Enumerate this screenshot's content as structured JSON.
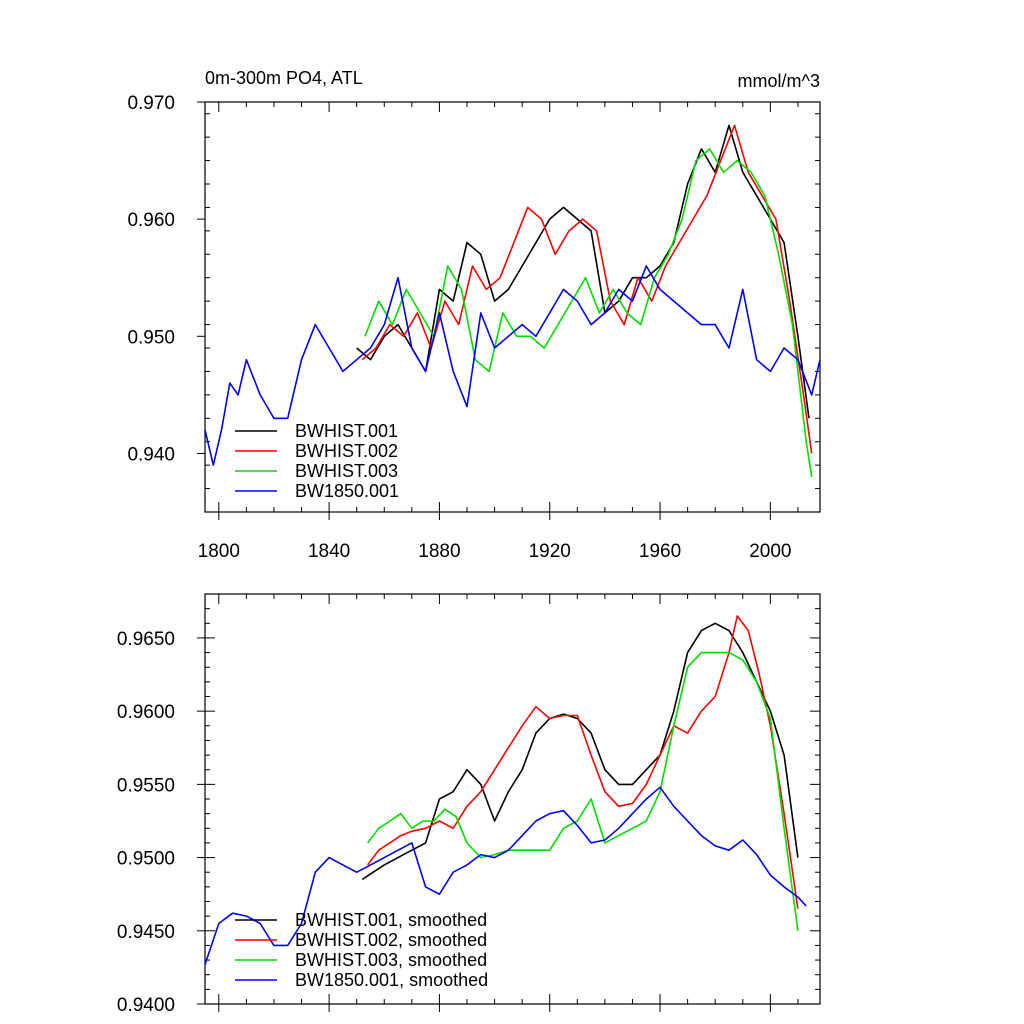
{
  "chart_data": [
    {
      "type": "line",
      "title_left": "0m-300m PO4, ATL",
      "title_right": "mmol/m^3",
      "xlim": [
        1795,
        2018
      ],
      "ylim": [
        0.935,
        0.97
      ],
      "xticks": [
        1800,
        1840,
        1880,
        1920,
        1960,
        2000
      ],
      "xtick_labels": [
        "1800",
        "1840",
        "1880",
        "1920",
        "1960",
        "2000"
      ],
      "yticks": [
        0.94,
        0.95,
        0.96,
        0.97
      ],
      "ytick_labels": [
        "0.940",
        "0.950",
        "0.960",
        "0.970"
      ],
      "legend": "bottom-left",
      "series": [
        {
          "name": "BWHIST.001",
          "color": "#000000",
          "x": [
            1850,
            1855,
            1860,
            1865,
            1870,
            1875,
            1880,
            1885,
            1890,
            1895,
            1900,
            1905,
            1910,
            1915,
            1920,
            1925,
            1930,
            1935,
            1940,
            1945,
            1950,
            1955,
            1960,
            1965,
            1970,
            1975,
            1980,
            1985,
            1990,
            1995,
            2000,
            2005,
            2010,
            2014
          ],
          "y": [
            0.949,
            0.948,
            0.95,
            0.951,
            0.949,
            0.947,
            0.954,
            0.953,
            0.958,
            0.957,
            0.953,
            0.954,
            0.956,
            0.958,
            0.96,
            0.961,
            0.96,
            0.959,
            0.952,
            0.953,
            0.955,
            0.955,
            0.956,
            0.958,
            0.963,
            0.966,
            0.964,
            0.968,
            0.964,
            0.962,
            0.96,
            0.958,
            0.95,
            0.943
          ]
        },
        {
          "name": "BWHIST.002",
          "color": "#ff0000",
          "x": [
            1852,
            1857,
            1862,
            1867,
            1872,
            1877,
            1882,
            1887,
            1892,
            1897,
            1902,
            1907,
            1912,
            1917,
            1922,
            1927,
            1932,
            1937,
            1942,
            1947,
            1952,
            1957,
            1962,
            1967,
            1972,
            1977,
            1982,
            1987,
            1992,
            1997,
            2002,
            2007,
            2012,
            2015
          ],
          "y": [
            0.948,
            0.949,
            0.951,
            0.95,
            0.952,
            0.949,
            0.953,
            0.951,
            0.956,
            0.954,
            0.955,
            0.958,
            0.961,
            0.96,
            0.957,
            0.959,
            0.96,
            0.959,
            0.953,
            0.951,
            0.955,
            0.953,
            0.956,
            0.958,
            0.96,
            0.962,
            0.965,
            0.968,
            0.964,
            0.962,
            0.96,
            0.953,
            0.945,
            0.94
          ]
        },
        {
          "name": "BWHIST.003",
          "color": "#00dd00",
          "x": [
            1853,
            1858,
            1863,
            1868,
            1873,
            1878,
            1883,
            1888,
            1893,
            1898,
            1903,
            1908,
            1913,
            1918,
            1923,
            1928,
            1933,
            1938,
            1943,
            1948,
            1953,
            1958,
            1963,
            1968,
            1973,
            1978,
            1983,
            1988,
            1993,
            1998,
            2003,
            2008,
            2013,
            2015
          ],
          "y": [
            0.95,
            0.953,
            0.951,
            0.954,
            0.952,
            0.95,
            0.956,
            0.954,
            0.948,
            0.947,
            0.952,
            0.95,
            0.95,
            0.949,
            0.951,
            0.953,
            0.955,
            0.952,
            0.954,
            0.952,
            0.951,
            0.955,
            0.957,
            0.96,
            0.965,
            0.966,
            0.964,
            0.965,
            0.964,
            0.962,
            0.957,
            0.951,
            0.941,
            0.938
          ]
        },
        {
          "name": "BW1850.001",
          "color": "#0000ff",
          "x": [
            1795,
            1798,
            1801,
            1804,
            1807,
            1810,
            1815,
            1820,
            1825,
            1830,
            1835,
            1840,
            1845,
            1850,
            1855,
            1860,
            1865,
            1870,
            1875,
            1880,
            1885,
            1890,
            1895,
            1900,
            1905,
            1910,
            1915,
            1920,
            1925,
            1930,
            1935,
            1940,
            1945,
            1950,
            1955,
            1960,
            1965,
            1970,
            1975,
            1980,
            1985,
            1990,
            1995,
            2000,
            2005,
            2010,
            2015,
            2018
          ],
          "y": [
            0.942,
            0.939,
            0.942,
            0.946,
            0.945,
            0.948,
            0.945,
            0.943,
            0.943,
            0.948,
            0.951,
            0.949,
            0.947,
            0.948,
            0.949,
            0.951,
            0.955,
            0.949,
            0.947,
            0.952,
            0.947,
            0.944,
            0.952,
            0.949,
            0.95,
            0.951,
            0.95,
            0.952,
            0.954,
            0.953,
            0.951,
            0.952,
            0.954,
            0.953,
            0.956,
            0.954,
            0.953,
            0.952,
            0.951,
            0.951,
            0.949,
            0.954,
            0.948,
            0.947,
            0.949,
            0.948,
            0.945,
            0.948
          ]
        }
      ]
    },
    {
      "type": "line",
      "xlim": [
        1795,
        2018
      ],
      "ylim": [
        0.94,
        0.968
      ],
      "xticks": [
        1800,
        1840,
        1880,
        1920,
        1960,
        2000
      ],
      "yticks": [
        0.94,
        0.945,
        0.95,
        0.955,
        0.96,
        0.965
      ],
      "ytick_labels": [
        "0.9400",
        "0.9450",
        "0.9500",
        "0.9550",
        "0.9600",
        "0.9650"
      ],
      "legend": "bottom-left",
      "series": [
        {
          "name": "BWHIST.001, smoothed",
          "color": "#000000",
          "x": [
            1852,
            1856,
            1860,
            1865,
            1870,
            1875,
            1880,
            1885,
            1890,
            1895,
            1900,
            1905,
            1910,
            1915,
            1920,
            1925,
            1930,
            1935,
            1940,
            1945,
            1950,
            1955,
            1960,
            1965,
            1970,
            1975,
            1980,
            1985,
            1990,
            1995,
            2000,
            2005,
            2010
          ],
          "y": [
            0.9485,
            0.949,
            0.9495,
            0.95,
            0.9505,
            0.951,
            0.954,
            0.9545,
            0.956,
            0.955,
            0.9525,
            0.9545,
            0.956,
            0.9585,
            0.9595,
            0.9598,
            0.9595,
            0.9585,
            0.956,
            0.955,
            0.955,
            0.956,
            0.957,
            0.96,
            0.964,
            0.9655,
            0.966,
            0.9655,
            0.964,
            0.962,
            0.96,
            0.957,
            0.95
          ]
        },
        {
          "name": "BWHIST.002, smoothed",
          "color": "#ff0000",
          "x": [
            1854,
            1858,
            1862,
            1866,
            1870,
            1875,
            1880,
            1885,
            1890,
            1895,
            1900,
            1905,
            1910,
            1915,
            1920,
            1925,
            1930,
            1935,
            1940,
            1945,
            1950,
            1955,
            1960,
            1965,
            1970,
            1975,
            1980,
            1985,
            1988,
            1992,
            1996,
            2000,
            2005,
            2010
          ],
          "y": [
            0.9495,
            0.9505,
            0.951,
            0.9515,
            0.9518,
            0.952,
            0.9525,
            0.952,
            0.9535,
            0.9545,
            0.956,
            0.9575,
            0.959,
            0.9603,
            0.9595,
            0.9597,
            0.9597,
            0.957,
            0.9545,
            0.9535,
            0.9537,
            0.955,
            0.957,
            0.959,
            0.9585,
            0.96,
            0.961,
            0.964,
            0.9665,
            0.9655,
            0.9625,
            0.959,
            0.953,
            0.9465
          ]
        },
        {
          "name": "BWHIST.003, smoothed",
          "color": "#00dd00",
          "x": [
            1854,
            1858,
            1862,
            1866,
            1870,
            1874,
            1878,
            1882,
            1886,
            1890,
            1895,
            1900,
            1905,
            1910,
            1915,
            1920,
            1925,
            1930,
            1935,
            1940,
            1945,
            1950,
            1955,
            1960,
            1965,
            1970,
            1975,
            1980,
            1985,
            1990,
            1995,
            2000,
            2005,
            2010
          ],
          "y": [
            0.951,
            0.952,
            0.9525,
            0.953,
            0.952,
            0.9525,
            0.9525,
            0.9533,
            0.9528,
            0.951,
            0.95,
            0.9502,
            0.9505,
            0.9505,
            0.9505,
            0.9505,
            0.952,
            0.9525,
            0.954,
            0.951,
            0.9515,
            0.952,
            0.9525,
            0.9545,
            0.959,
            0.963,
            0.964,
            0.964,
            0.964,
            0.9635,
            0.962,
            0.9595,
            0.952,
            0.945
          ]
        },
        {
          "name": "BW1850.001, smoothed",
          "color": "#0000ff",
          "x": [
            1795,
            1800,
            1805,
            1810,
            1815,
            1820,
            1825,
            1830,
            1835,
            1840,
            1845,
            1850,
            1855,
            1860,
            1865,
            1870,
            1875,
            1880,
            1885,
            1890,
            1895,
            1900,
            1905,
            1910,
            1915,
            1920,
            1925,
            1930,
            1935,
            1940,
            1945,
            1950,
            1955,
            1960,
            1965,
            1970,
            1975,
            1980,
            1985,
            1990,
            1995,
            2000,
            2005,
            2010,
            2013
          ],
          "y": [
            0.9427,
            0.9455,
            0.9462,
            0.946,
            0.9455,
            0.944,
            0.944,
            0.9455,
            0.949,
            0.95,
            0.9495,
            0.949,
            0.9495,
            0.95,
            0.9505,
            0.951,
            0.948,
            0.9475,
            0.949,
            0.9495,
            0.9502,
            0.95,
            0.9505,
            0.9515,
            0.9525,
            0.953,
            0.9532,
            0.9522,
            0.951,
            0.9512,
            0.952,
            0.953,
            0.954,
            0.9548,
            0.9535,
            0.9525,
            0.9515,
            0.9508,
            0.9505,
            0.9512,
            0.9502,
            0.9488,
            0.948,
            0.9473,
            0.9467
          ]
        }
      ]
    }
  ]
}
